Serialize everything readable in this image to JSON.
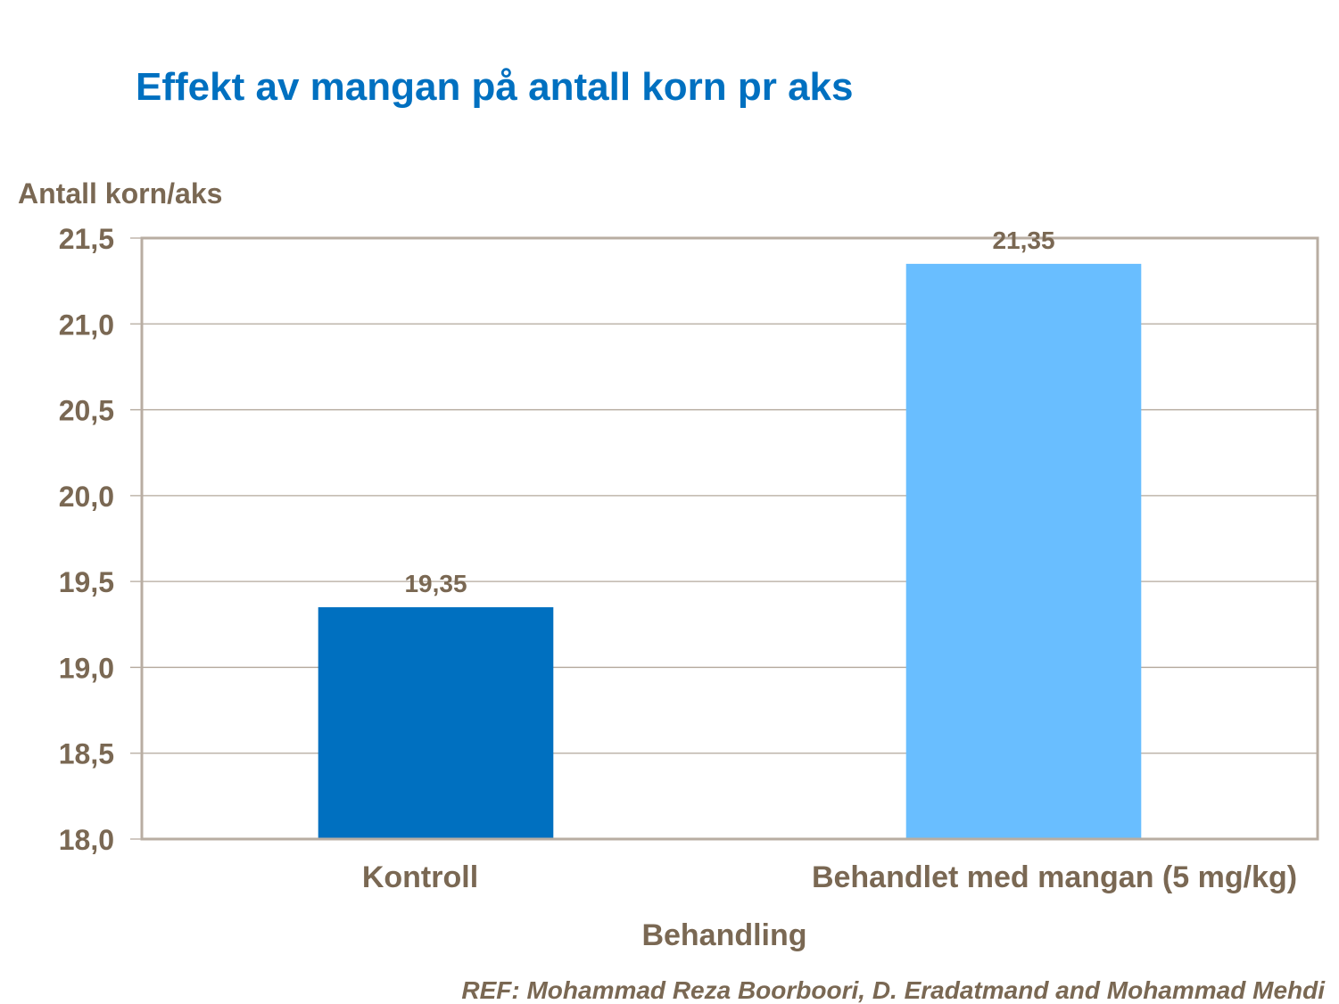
{
  "chart_data": {
    "type": "bar",
    "title": "Effekt av mangan på antall korn pr aks",
    "ylabel": "Antall korn/aks",
    "xlabel": "Behandling",
    "categories": [
      "Kontroll",
      "Behandlet med mangan (5 mg/kg)"
    ],
    "values": [
      19.35,
      21.35
    ],
    "data_labels": [
      "19,35",
      "21,35"
    ],
    "bar_colors": [
      "#0070C0",
      "#69BEFF"
    ],
    "ylim": [
      18.0,
      21.5
    ],
    "y_ticks": [
      18.0,
      18.5,
      19.0,
      19.5,
      20.0,
      20.5,
      21.0,
      21.5
    ],
    "y_tick_labels": [
      "18,0",
      "18,5",
      "19,0",
      "19,5",
      "20,0",
      "20,5",
      "21,0",
      "21,5"
    ],
    "grid": true,
    "legend": "none",
    "reference": "REF: Mohammad Reza Boorboori, D. Eradatmand and Mohammad Mehdi"
  },
  "colors": {
    "title": "#0070C0",
    "text": "#7A6853",
    "frame": "#B8ADA2",
    "grid": "#B3A89C"
  }
}
